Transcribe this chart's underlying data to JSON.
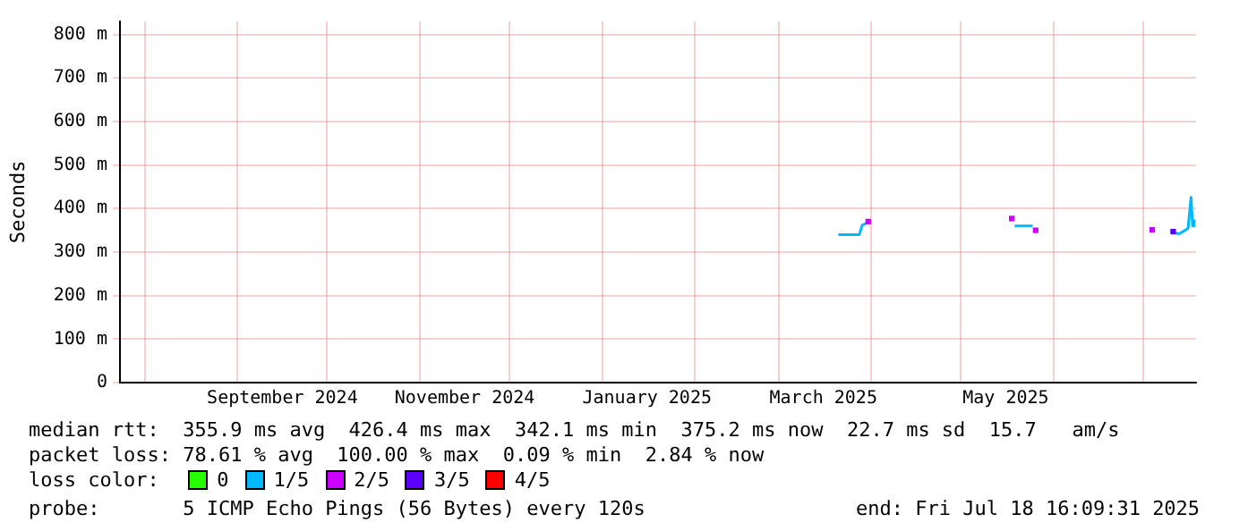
{
  "chart_data": {
    "type": "line",
    "ylabel": "Seconds",
    "legend_title": "loss color:",
    "legend": "bottom",
    "grid": true,
    "xlim": [
      "2024-07-23T16:09",
      "2025-07-18T16:09"
    ],
    "xticks": [
      {
        "value": "2024-08-01",
        "label": null
      },
      {
        "value": "2024-09-01",
        "label": null
      },
      {
        "value": "2024-09-16",
        "label": "September 2024"
      },
      {
        "value": "2024-10-01",
        "label": null
      },
      {
        "value": "2024-11-01",
        "label": null
      },
      {
        "value": "2024-11-16",
        "label": "November 2024"
      },
      {
        "value": "2024-12-01",
        "label": null
      },
      {
        "value": "2025-01-01",
        "label": null
      },
      {
        "value": "2025-01-16",
        "label": "January 2025"
      },
      {
        "value": "2025-02-01",
        "label": null
      },
      {
        "value": "2025-03-01",
        "label": null
      },
      {
        "value": "2025-03-16",
        "label": "March 2025"
      },
      {
        "value": "2025-04-01",
        "label": null
      },
      {
        "value": "2025-05-01",
        "label": null
      },
      {
        "value": "2025-05-16",
        "label": "May 2025"
      },
      {
        "value": "2025-06-01",
        "label": null
      },
      {
        "value": "2025-07-01",
        "label": null
      }
    ],
    "ylim": [
      0,
      830
    ],
    "yticks": [
      {
        "value": 0,
        "label": "0"
      },
      {
        "value": 100,
        "label": "100 m"
      },
      {
        "value": 200,
        "label": "200 m"
      },
      {
        "value": 300,
        "label": "300 m"
      },
      {
        "value": 400,
        "label": "400 m"
      },
      {
        "value": 500,
        "label": "500 m"
      },
      {
        "value": 600,
        "label": "600 m"
      },
      {
        "value": 700,
        "label": "700 m"
      },
      {
        "value": 800,
        "label": "800 m"
      }
    ],
    "series": [
      {
        "name": "0",
        "color": "#26ff00"
      },
      {
        "name": "1/5",
        "color": "#00b8ff",
        "x": [
          "2025-03-21",
          "2025-03-28",
          "2025-03-29",
          "2025-03-31",
          "2025-04-15",
          "2025-05-19",
          "2025-05-25",
          "2025-06-15",
          "2025-07-11",
          "2025-07-13",
          "2025-07-15",
          "2025-07-16",
          "2025-07-17",
          "2025-07-17T12:00",
          "2025-07-18"
        ],
        "values": [
          340,
          340,
          362,
          368,
          null,
          360,
          360,
          null,
          345,
          342,
          350,
          355,
          426,
          360,
          375
        ]
      },
      {
        "name": "2/5",
        "type": "scatter",
        "marker": "square",
        "color": "#cc00ff",
        "x": [
          "2025-03-31",
          "2025-05-18",
          "2025-05-26",
          "2025-07-04"
        ],
        "values": [
          370,
          377,
          350,
          351
        ]
      },
      {
        "name": "3/5",
        "type": "scatter",
        "marker": "square",
        "color": "#5b00ff",
        "x": [
          "2025-07-11"
        ],
        "values": [
          347
        ]
      },
      {
        "name": "4/5",
        "color": "#ff0000"
      }
    ],
    "annotations": [
      "median rtt:  355.9 ms avg  426.4 ms max  342.1 ms min  375.2 ms now  22.7 ms sd  15.7   am/s",
      "packet loss: 78.61 % avg  100.00 % max  0.09 % min  2.84 % now",
      "probe:       5 ICMP Echo Pings (56 Bytes) every 120s",
      "end: Fri Jul 18 16:09:31 2025"
    ]
  }
}
